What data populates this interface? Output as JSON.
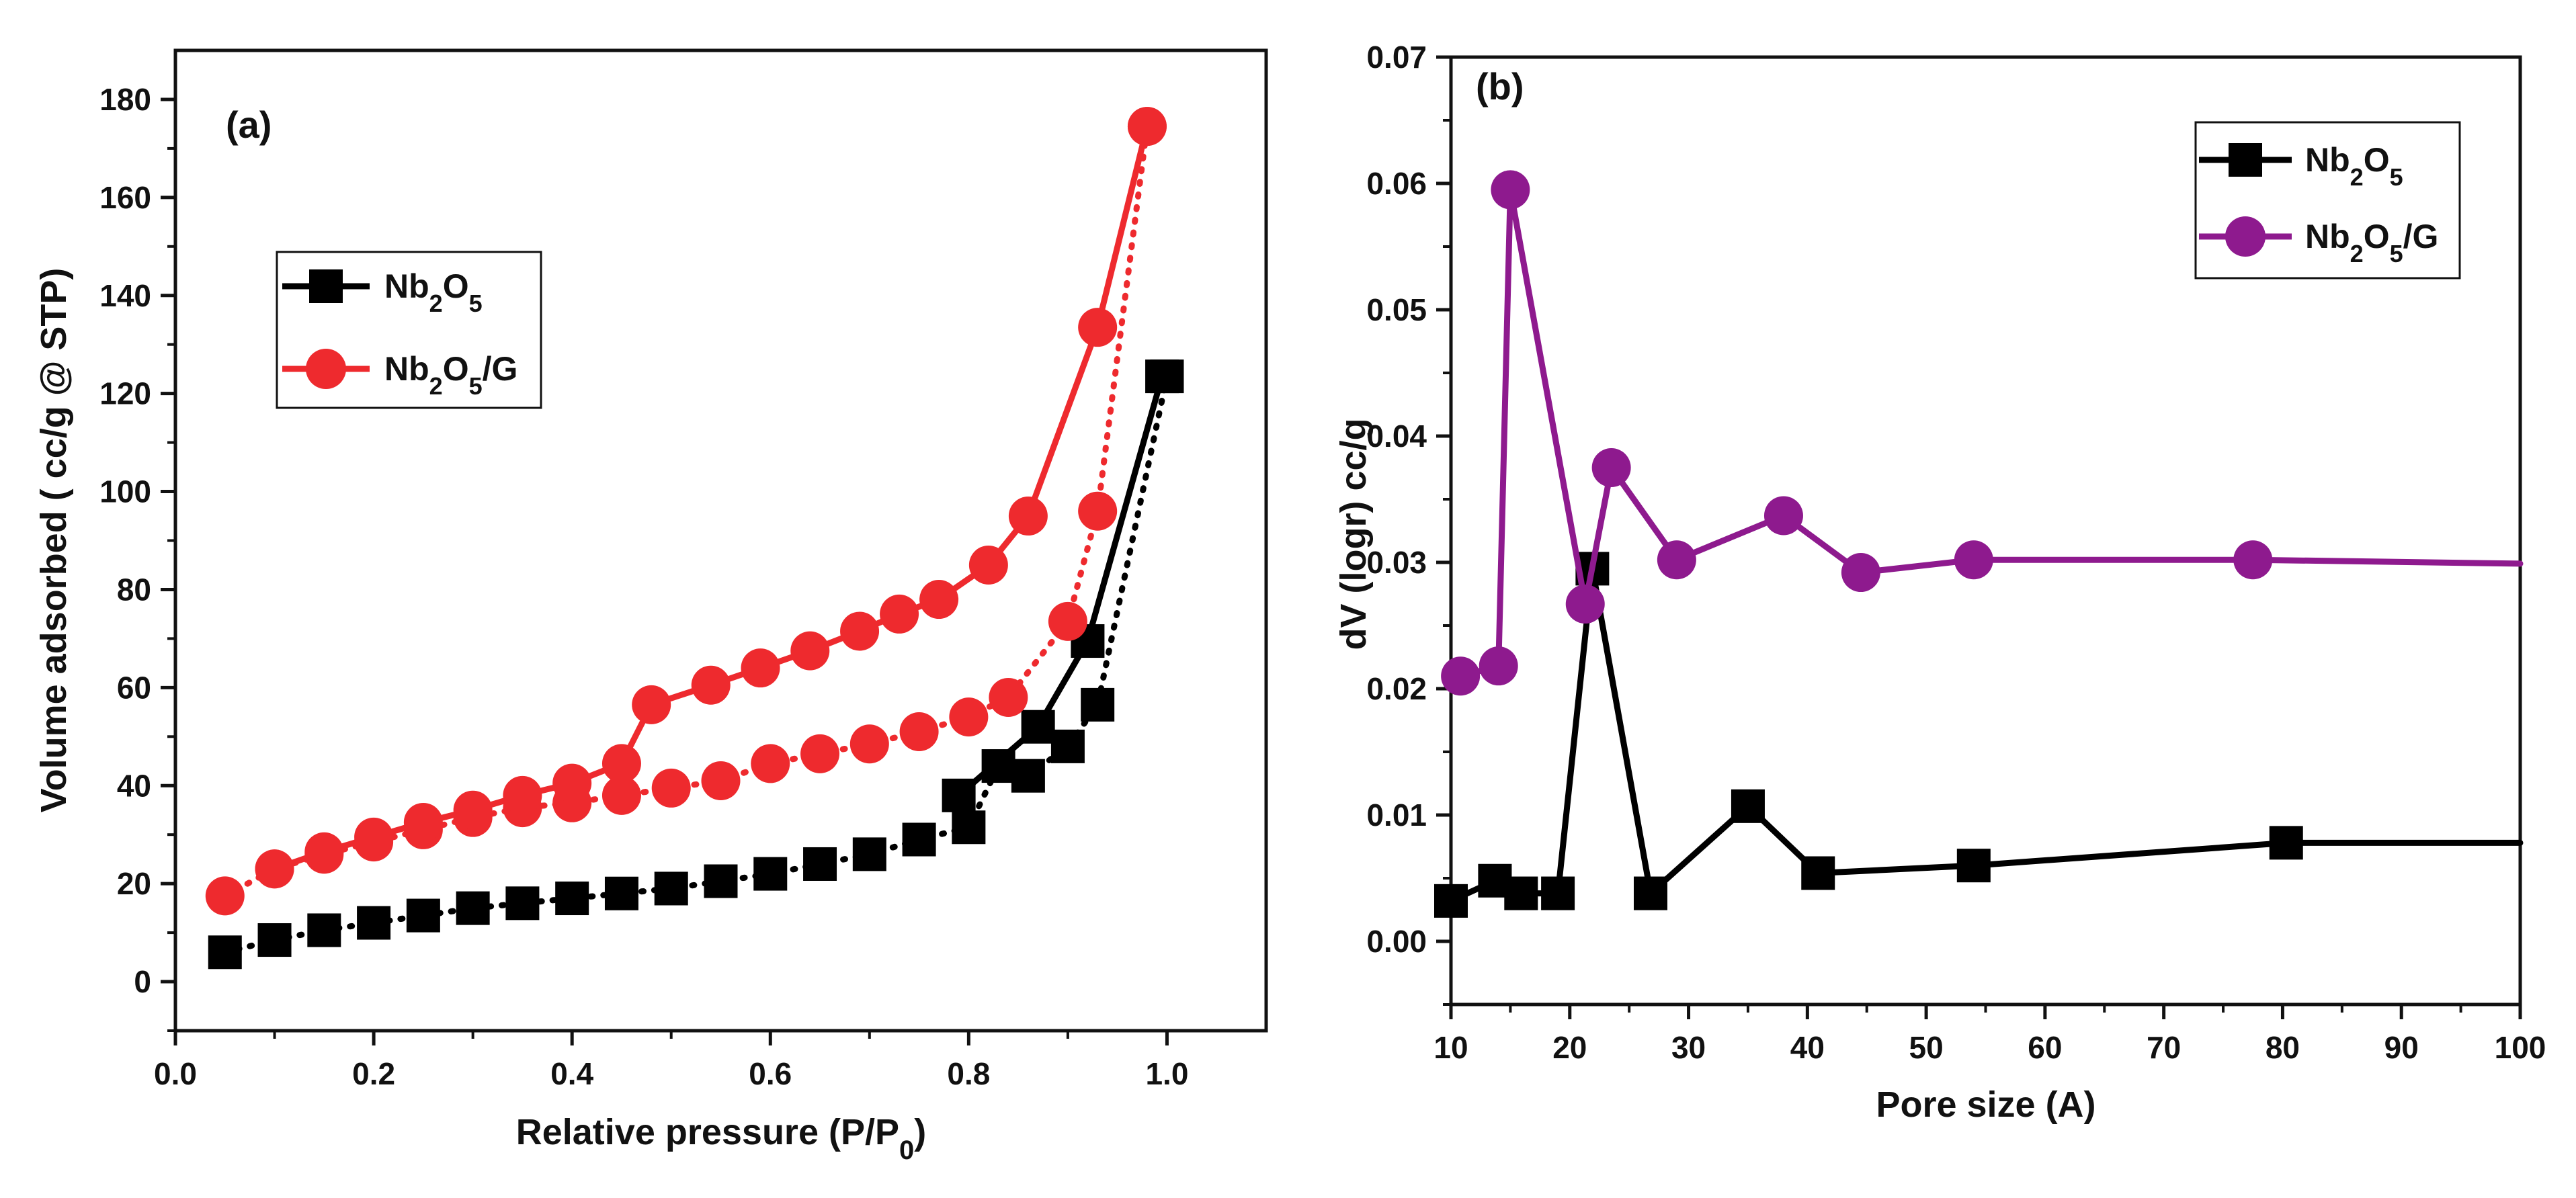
{
  "chart_data": [
    {
      "type": "scatter",
      "panel": "(a)",
      "title": "",
      "xlabel": "Relative pressure (P/P",
      "xlabel_sub": "0",
      "xlabel_end": ")",
      "ylabel": "Volume adsorbed ( cc/g @ STP)",
      "xlim": [
        0.0,
        1.1
      ],
      "ylim": [
        -10,
        190
      ],
      "xticks": [
        0.0,
        0.2,
        0.4,
        0.6,
        0.8,
        1.0
      ],
      "xtick_labels": [
        "0.0",
        "0.2",
        "0.4",
        "0.6",
        "0.8",
        "1.0"
      ],
      "yticks": [
        0,
        20,
        40,
        60,
        80,
        100,
        120,
        140,
        160,
        180
      ],
      "ytick_labels": [
        "0",
        "20",
        "40",
        "60",
        "80",
        "100",
        "120",
        "140",
        "160",
        "180"
      ],
      "legend_position": "upper-left",
      "series": [
        {
          "name": "Nb2O5",
          "legend_parts": [
            "Nb",
            "2",
            "O",
            "5",
            ""
          ],
          "marker": "square",
          "color": "#000000",
          "adsorption": {
            "x": [
              0.05,
              0.1,
              0.15,
              0.2,
              0.25,
              0.3,
              0.35,
              0.4,
              0.45,
              0.5,
              0.55,
              0.6,
              0.65,
              0.7,
              0.75,
              0.8,
              0.83,
              0.86,
              0.9,
              0.93,
              1.0
            ],
            "y": [
              6,
              8.5,
              10.5,
              12,
              13.5,
              15,
              16,
              17,
              18,
              19,
              20.5,
              22,
              24,
              26,
              29,
              31.5,
              44,
              42,
              48,
              56.5,
              123.5
            ]
          },
          "desorption": {
            "x": [
              0.995,
              0.92,
              0.87,
              0.79
            ],
            "y": [
              123.5,
              69.5,
              52,
              38
            ]
          }
        },
        {
          "name": "Nb2O5/G",
          "legend_parts": [
            "Nb",
            "2",
            "O",
            "5",
            "/G"
          ],
          "marker": "circle",
          "color": "#ee2a2e",
          "adsorption": {
            "x": [
              0.05,
              0.1,
              0.15,
              0.2,
              0.25,
              0.3,
              0.35,
              0.4,
              0.45,
              0.5,
              0.55,
              0.6,
              0.65,
              0.7,
              0.75,
              0.8,
              0.84,
              0.9,
              0.93,
              0.98
            ],
            "y": [
              17.5,
              23,
              26,
              28.5,
              31,
              33.5,
              35.5,
              36.5,
              38,
              39.5,
              41,
              44.5,
              46.5,
              48.5,
              51,
              54,
              58,
              73.5,
              96,
              174.5
            ]
          },
          "desorption": {
            "x": [
              0.98,
              0.93,
              0.86,
              0.82,
              0.77,
              0.73,
              0.69,
              0.64,
              0.59,
              0.54,
              0.48,
              0.45,
              0.4,
              0.35,
              0.3,
              0.25,
              0.2,
              0.15,
              0.1
            ],
            "y": [
              174.5,
              133.5,
              95,
              85,
              78,
              75,
              71.5,
              67.5,
              64,
              60.5,
              56.5,
              44.5,
              40.5,
              38,
              35,
              32.5,
              29.5,
              26.5,
              23
            ]
          }
        }
      ]
    },
    {
      "type": "line",
      "panel": "(b)",
      "title": "",
      "xlabel": "Pore size (A)",
      "ylabel": "dV (logr) cc/g",
      "xlim": [
        10,
        100
      ],
      "ylim": [
        -0.005,
        0.07
      ],
      "xticks": [
        10,
        20,
        30,
        40,
        50,
        60,
        70,
        80,
        90,
        100
      ],
      "xtick_labels": [
        "10",
        "20",
        "30",
        "40",
        "50",
        "60",
        "70",
        "80",
        "90",
        "100"
      ],
      "yticks": [
        0.0,
        0.01,
        0.02,
        0.03,
        0.04,
        0.05,
        0.06,
        0.07
      ],
      "ytick_labels": [
        "0.00",
        "0.01",
        "0.02",
        "0.03",
        "0.04",
        "0.05",
        "0.06",
        "0.07"
      ],
      "legend_position": "upper-right",
      "series": [
        {
          "name": "Nb2O5",
          "legend_parts": [
            "Nb",
            "2",
            "O",
            "5",
            ""
          ],
          "marker": "square",
          "color": "#000000",
          "line_x": [
            10,
            13.7,
            15.9,
            19,
            21.9,
            26.8,
            35,
            40.9,
            54,
            80.3,
            100
          ],
          "line_y": [
            0.0032,
            0.0048,
            0.0038,
            0.0038,
            0.0295,
            0.0038,
            0.0107,
            0.0054,
            0.006,
            0.0078,
            0.0078
          ],
          "marker_x": [
            10,
            13.7,
            15.9,
            19,
            21.9,
            26.8,
            35,
            40.9,
            54,
            80.3
          ],
          "marker_y": [
            0.0032,
            0.0048,
            0.0038,
            0.0038,
            0.0295,
            0.0038,
            0.0107,
            0.0054,
            0.006,
            0.0078
          ]
        },
        {
          "name": "Nb2O5/G",
          "legend_parts": [
            "Nb",
            "2",
            "O",
            "5",
            "/G"
          ],
          "marker": "circle",
          "color": "#8e1a8e",
          "line_x": [
            10.8,
            14,
            15,
            21.3,
            23.5,
            29,
            38,
            44.5,
            54,
            77.5,
            100
          ],
          "line_y": [
            0.021,
            0.0218,
            0.0595,
            0.0267,
            0.0375,
            0.0302,
            0.0337,
            0.0292,
            0.0302,
            0.0302,
            0.0299
          ],
          "marker_x": [
            10.8,
            14,
            15,
            21.3,
            23.5,
            29,
            38,
            44.5,
            54,
            77.5
          ],
          "marker_y": [
            0.021,
            0.0218,
            0.0595,
            0.0267,
            0.0375,
            0.0302,
            0.0337,
            0.0292,
            0.0302,
            0.0302
          ]
        }
      ]
    }
  ]
}
